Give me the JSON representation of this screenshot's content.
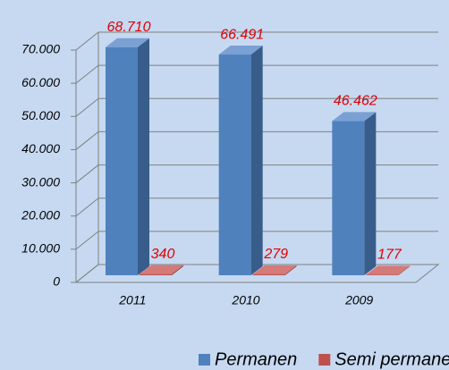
{
  "chart_data": {
    "type": "bar3d",
    "categories": [
      "2011",
      "2010",
      "2009"
    ],
    "series": [
      {
        "name": "Permanen",
        "color": "#4f81bd",
        "values": [
          68710,
          66491,
          46462
        ],
        "value_labels": [
          "68.710",
          "66.491",
          "46.462"
        ]
      },
      {
        "name": "Semi permanen",
        "color": "#c0504d",
        "values": [
          340,
          279,
          177
        ],
        "value_labels": [
          "340",
          "279",
          "177"
        ]
      }
    ],
    "ylim": [
      0,
      70000
    ],
    "yticks": [
      0,
      {
        "value": 10000,
        "label": "10.000"
      },
      {
        "value": 20000,
        "label": "20.000"
      },
      {
        "value": 30000,
        "label": "30.000"
      },
      {
        "value": 40000,
        "label": "40.000"
      },
      {
        "value": 50000,
        "label": "50.000"
      },
      {
        "value": 60000,
        "label": "60.000"
      },
      {
        "value": 70000,
        "label": "70.000"
      }
    ],
    "grid": true,
    "legend": "bottom"
  }
}
